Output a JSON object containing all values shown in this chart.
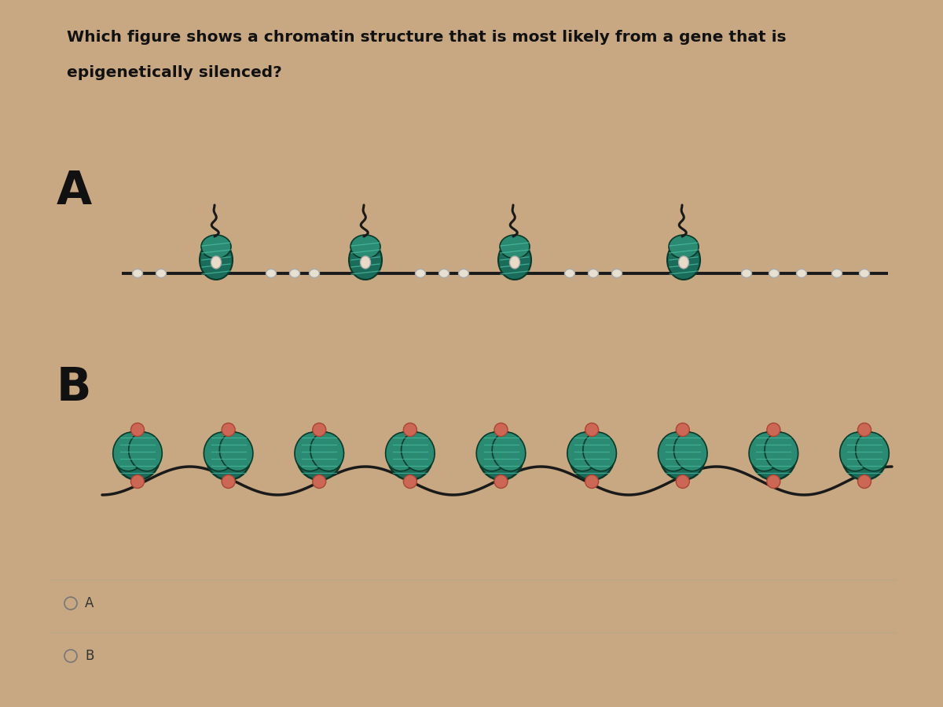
{
  "background_color": "#c8a882",
  "card_color": "#e0c9a8",
  "title_line1": "Which figure shows a chromatin structure that is most likely from a gene that is",
  "title_line2": "epigenetically silenced?",
  "label_A": "A",
  "label_B": "B",
  "option_A": "A",
  "option_B": "B",
  "title_fontsize": 14.5,
  "label_fontsize": 42,
  "option_fontsize": 12,
  "nuc_teal_dark": "#1a6b5a",
  "nuc_teal_mid": "#2a8a72",
  "nuc_teal_light": "#3aaa88",
  "nuc_stripe": "#4abba0",
  "dna_color": "#1a1a1a",
  "tail_color": "#1a1a1a",
  "bead_color_A": "#e8e0d0",
  "bead_edge_A": "#aaaaaa",
  "dot_color_B": "#cc6655",
  "dot_edge_B": "#aa4433",
  "nuc_outline": "#0a3a2a"
}
